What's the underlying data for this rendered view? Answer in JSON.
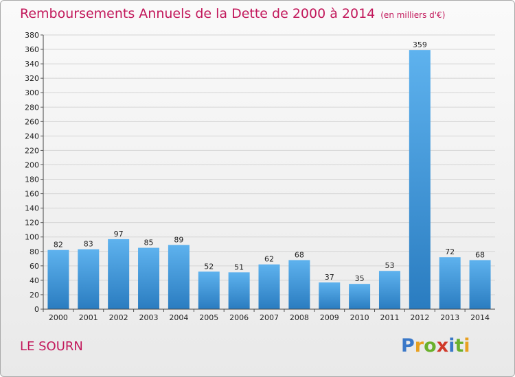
{
  "chart_data": {
    "type": "bar",
    "title": "Remboursements Annuels de la Dette de 2000 à 2014",
    "subtitle": "(en milliers d'€)",
    "categories": [
      "2000",
      "2001",
      "2002",
      "2003",
      "2004",
      "2005",
      "2006",
      "2007",
      "2008",
      "2009",
      "2010",
      "2011",
      "2012",
      "2013",
      "2014"
    ],
    "values": [
      82,
      83,
      97,
      85,
      89,
      52,
      51,
      62,
      68,
      37,
      35,
      53,
      359,
      72,
      68
    ],
    "ylim": [
      0,
      380
    ],
    "ytick_step": 20,
    "grid": true,
    "bar_color_top": "#5eb2ee",
    "bar_color_bottom": "#2a7cc0"
  },
  "commune": "LE SOURN",
  "logo": {
    "letters": [
      "P",
      "r",
      "o",
      "x",
      "i",
      "t",
      "i"
    ]
  }
}
